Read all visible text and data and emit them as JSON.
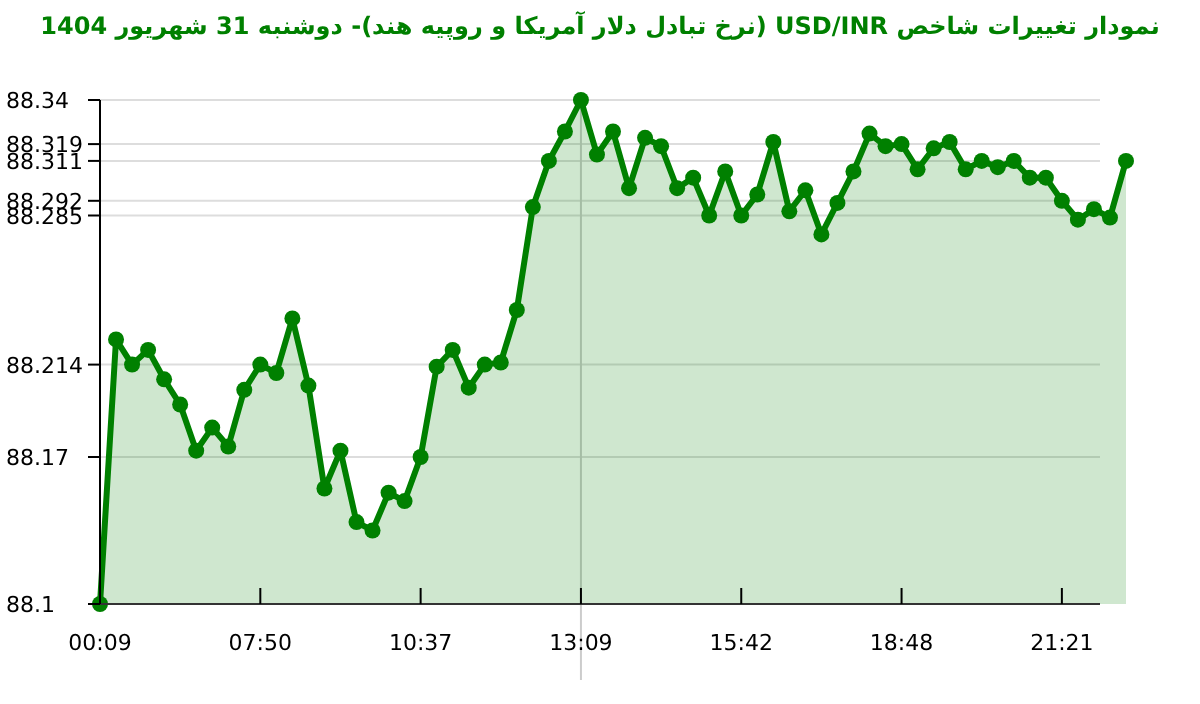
{
  "chart_data": {
    "type": "area",
    "title": "نمودار تغییرات شاخص USD/INR (نرخ تبادل دلار آمریکا و روپیه هند)- دوشنبه  31 شهریور 1404",
    "categories": [
      "00:09",
      null,
      null,
      null,
      null,
      null,
      null,
      null,
      null,
      null,
      "07:50",
      null,
      null,
      null,
      null,
      null,
      null,
      null,
      null,
      null,
      "10:37",
      null,
      null,
      null,
      null,
      null,
      null,
      null,
      null,
      null,
      "13:09",
      null,
      null,
      null,
      null,
      null,
      null,
      null,
      null,
      null,
      "15:42",
      null,
      null,
      null,
      null,
      null,
      null,
      null,
      null,
      null,
      "18:48",
      null,
      null,
      null,
      null,
      null,
      null,
      null,
      null,
      null,
      "21:21",
      null,
      null,
      null,
      null
    ],
    "series": [
      {
        "color": "#008000",
        "values": [
          88.1,
          88.226,
          88.214,
          88.221,
          88.207,
          88.195,
          88.173,
          88.184,
          88.175,
          88.202,
          88.214,
          88.21,
          88.236,
          88.204,
          88.155,
          88.173,
          88.139,
          88.135,
          88.153,
          88.149,
          88.17,
          88.213,
          88.221,
          88.203,
          88.214,
          88.215,
          88.24,
          88.289,
          88.311,
          88.325,
          88.34,
          88.314,
          88.325,
          88.298,
          88.322,
          88.318,
          88.298,
          88.303,
          88.285,
          88.306,
          88.285,
          88.295,
          88.32,
          88.287,
          88.297,
          88.276,
          88.291,
          88.306,
          88.324,
          88.318,
          88.319,
          88.307,
          88.317,
          88.32,
          88.307,
          88.311,
          88.308,
          88.311,
          88.303,
          88.303,
          88.292,
          88.283,
          88.288,
          88.284,
          88.311
        ]
      }
    ],
    "ylim": [
      88.1,
      88.34
    ],
    "yticks": [
      88.1,
      88.17,
      88.214,
      88.285,
      88.292,
      88.311,
      88.319,
      88.34
    ],
    "grid": "y",
    "marker": "circle",
    "line_style": "solid",
    "ref_lines": [
      {
        "axis": "x",
        "value": "13:09",
        "color": "#cccccc"
      }
    ]
  }
}
